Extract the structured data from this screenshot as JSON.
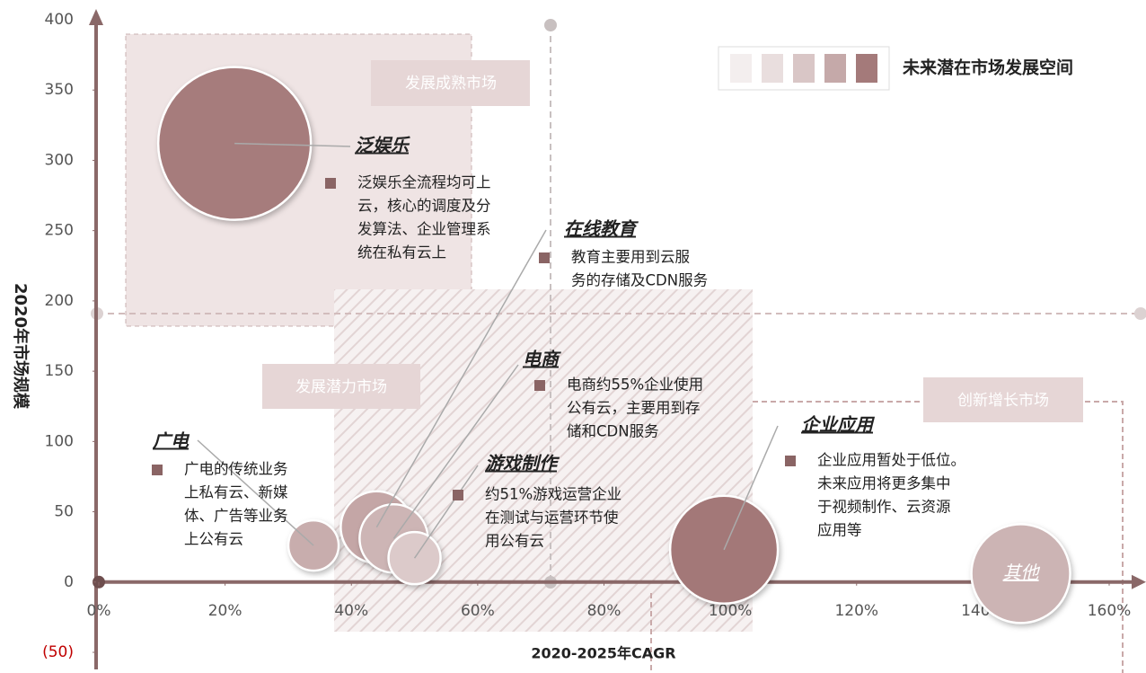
{
  "chart_data": {
    "type": "bubble",
    "x_label": "2020-2025年CAGR",
    "y_label": "2020年市场规模",
    "xlim": [
      0,
      160
    ],
    "ylim": [
      -50,
      400
    ],
    "xticks": [
      {
        "value": 0,
        "label": "0%"
      },
      {
        "value": 20,
        "label": "20%"
      },
      {
        "value": 40,
        "label": "40%"
      },
      {
        "value": 60,
        "label": "60%"
      },
      {
        "value": 80,
        "label": "80%"
      },
      {
        "value": 100,
        "label": "100%"
      },
      {
        "value": 120,
        "label": "120%"
      },
      {
        "value": 140,
        "label": "140%"
      },
      {
        "value": 160,
        "label": "160%"
      }
    ],
    "yticks": [
      {
        "value": -50,
        "label": "(50)"
      },
      0,
      50,
      100,
      150,
      200,
      250,
      300,
      350,
      400
    ],
    "negative_tick_color": "#c00000",
    "legend": {
      "title": "未来潜在市场发展空间",
      "colors": [
        "#f3eeee",
        "#e9dede",
        "#d9c6c6",
        "#c5a9a9",
        "#a47a7a"
      ]
    },
    "regions": [
      "发展成熟市场",
      "发展潜力市场",
      "创新增长市场"
    ],
    "bubbles": [
      {
        "name": "泛娱乐",
        "x": 21.5,
        "y": 312,
        "size": 85,
        "color": "#a67c7c",
        "description": [
          "泛娱乐全流程均可上",
          "云，核心的调度及分",
          "发算法、企业管理系",
          "统在私有云上"
        ]
      },
      {
        "name": "广电",
        "x": 34,
        "y": 26,
        "size": 28,
        "color": "#c8adad",
        "description": [
          "广电的传统业务",
          "上私有云、新媒",
          "体、广告等业务",
          "上公有云"
        ]
      },
      {
        "name": "在线教育",
        "x": 44,
        "y": 39,
        "size": 40,
        "color": "#c4a6a6",
        "description": [
          "教育主要用到云服",
          "务的存储及CDN服务"
        ]
      },
      {
        "name": "电商",
        "x": 46.7,
        "y": 31,
        "size": 38,
        "color": "#cdb5b5",
        "description": [
          "电商约55%企业使用",
          "公有云，主要用到存",
          "储和CDN服务"
        ]
      },
      {
        "name": "游戏制作",
        "x": 50,
        "y": 17,
        "size": 29,
        "color": "#dccaca",
        "description": [
          "约51%游戏运营企业",
          "在测试与运营环节使",
          "用公有云"
        ]
      },
      {
        "name": "企业应用",
        "x": 99,
        "y": 23,
        "size": 60,
        "color": "#a37878",
        "description": [
          "企业应用暂处于低位。",
          "未来应用将更多集中",
          "于视频制作、云资源",
          "应用等"
        ]
      },
      {
        "name": "其他",
        "x": 146,
        "y": 6,
        "size": 55,
        "color": "#ccb4b4",
        "description": []
      }
    ]
  }
}
